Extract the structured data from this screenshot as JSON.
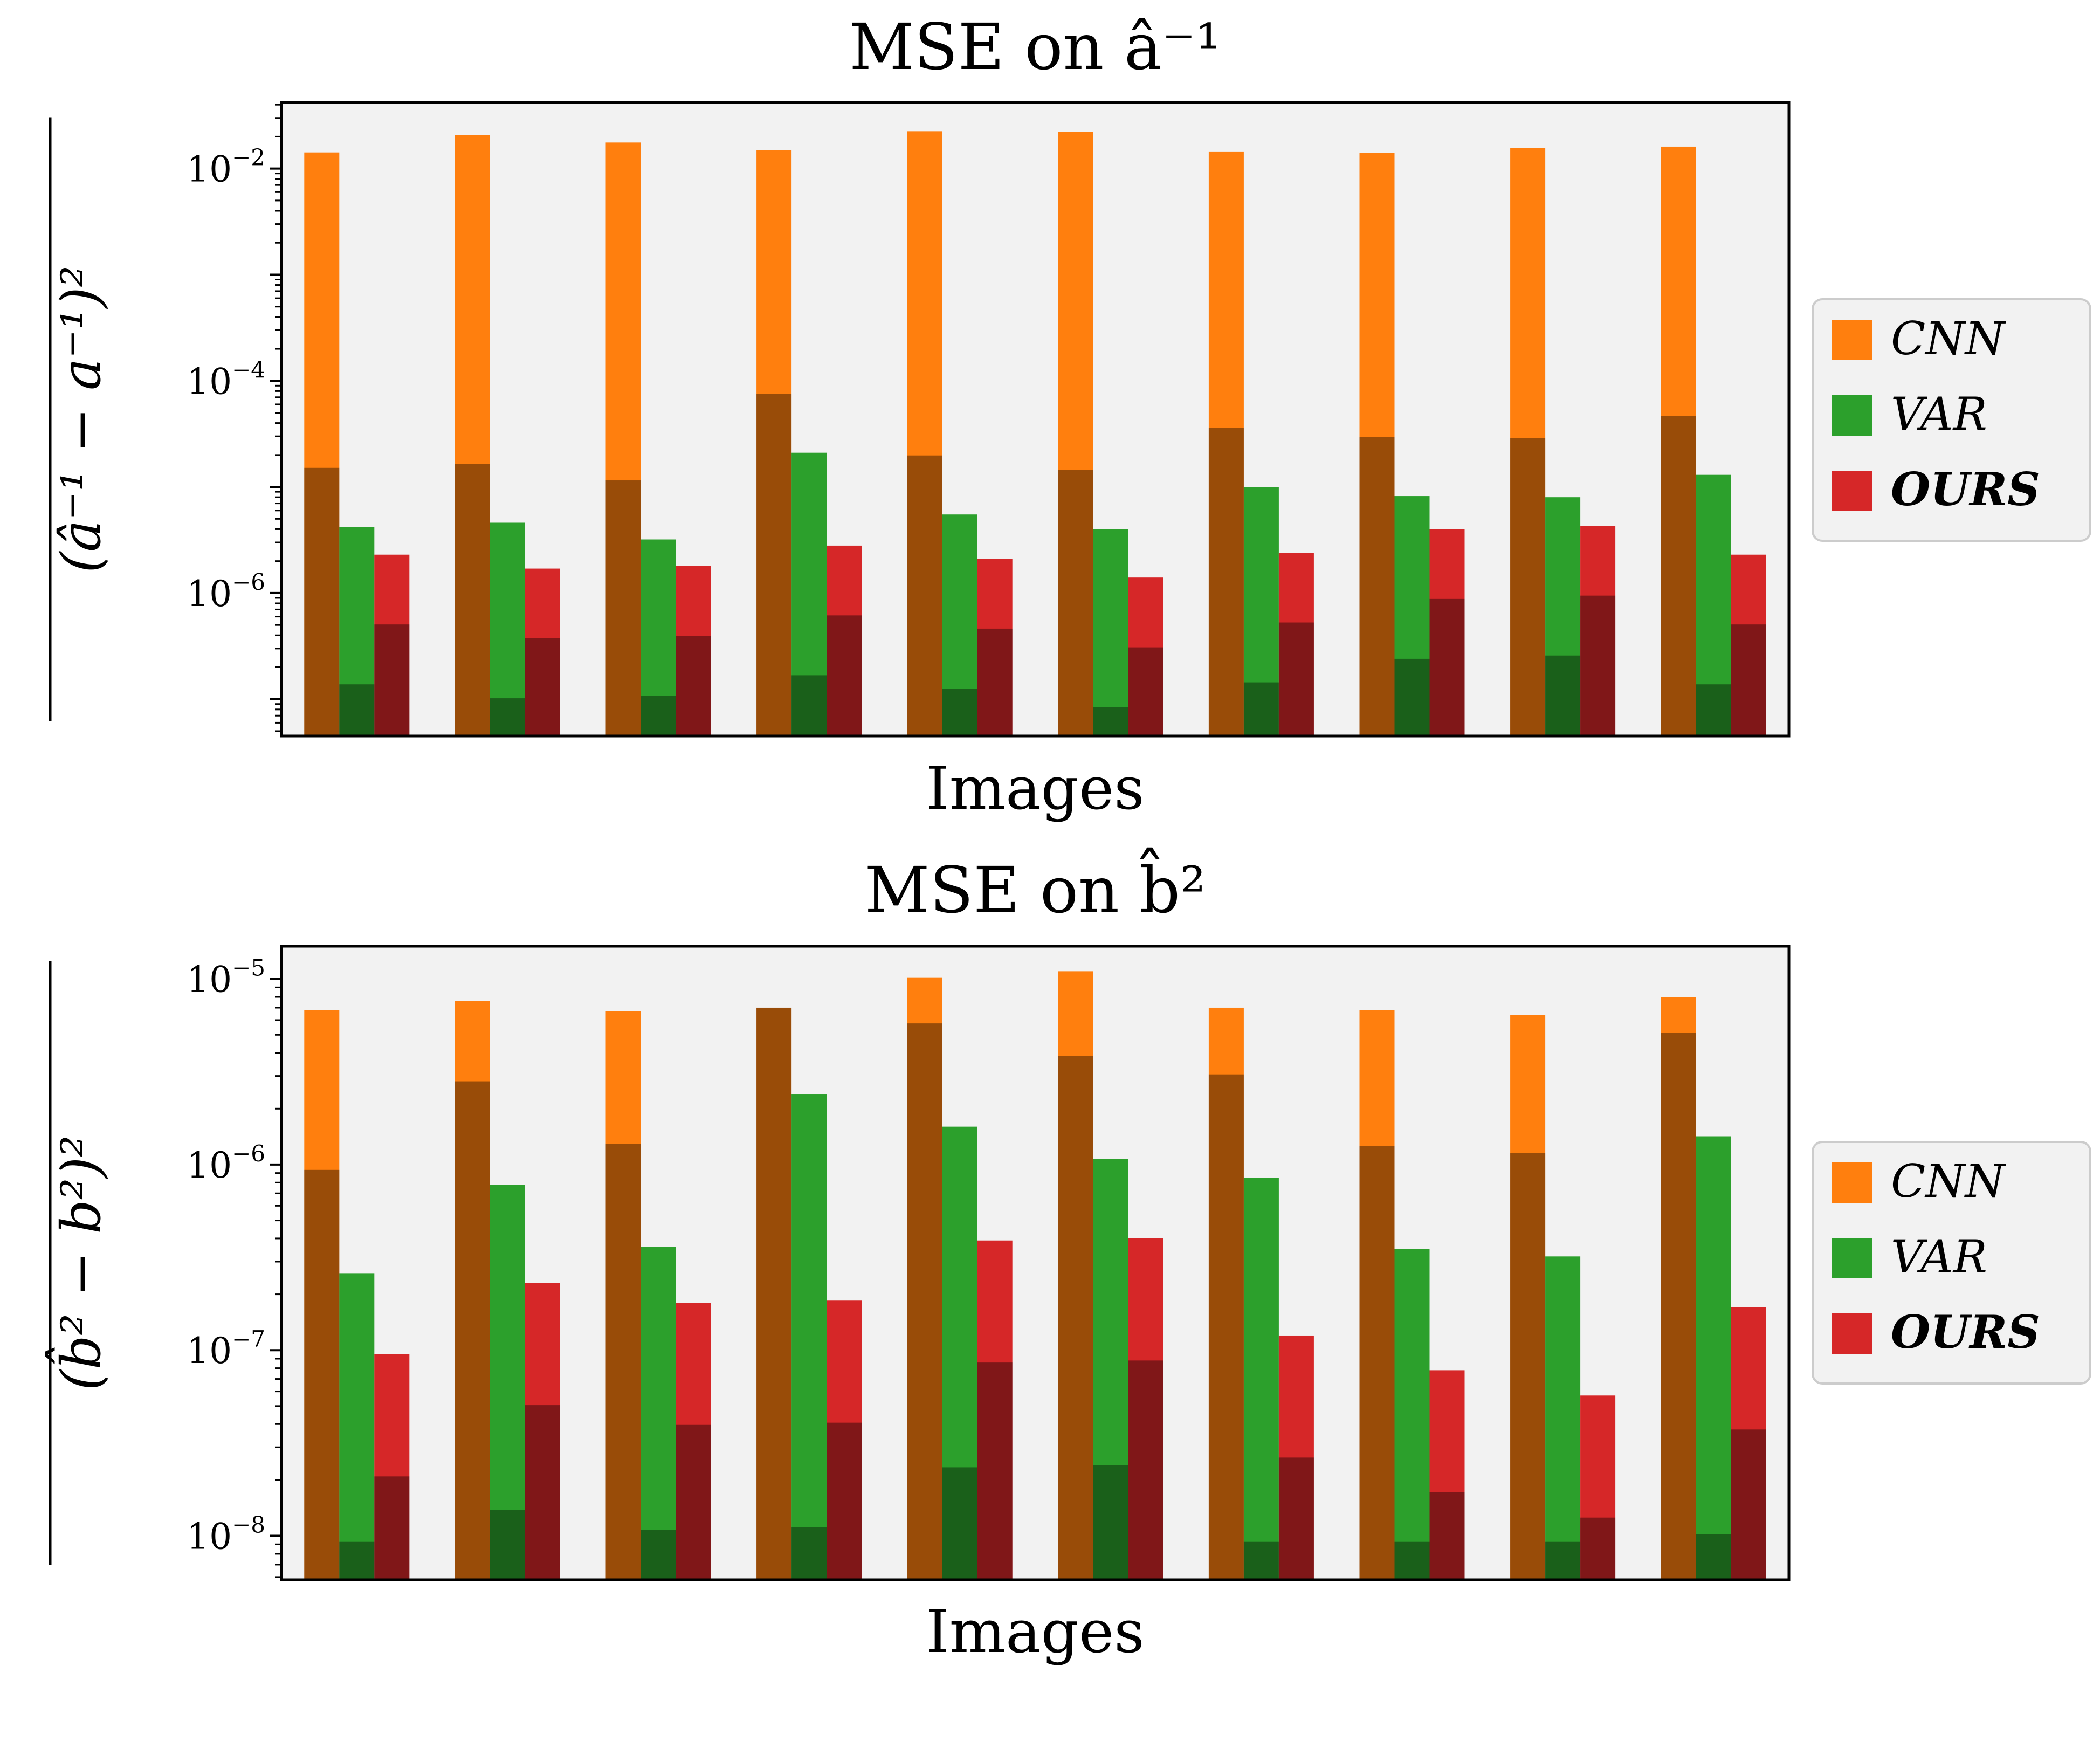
{
  "colors": {
    "cnn": "#ff7f0e",
    "var": "#2ca02c",
    "ours": "#d62728",
    "plot_bg": "#f2f2f2"
  },
  "chart_data": [
    {
      "type": "bar",
      "yscale": "log",
      "title": "MSE on â⁻¹",
      "xlabel": "Images",
      "ylabel": "(â⁻¹ − a⁻¹)²",
      "ylim": [
        4.5e-08,
        0.042
      ],
      "yticks": [
        {
          "value": 0.01,
          "base": "10",
          "exp": "−2"
        },
        {
          "value": 0.0001,
          "base": "10",
          "exp": "−4"
        },
        {
          "value": 1e-06,
          "base": "10",
          "exp": "−6"
        }
      ],
      "legend_position": "right",
      "series": [
        {
          "name": "CNN",
          "color_key": "cnn",
          "values": [
            0.0142,
            0.0208,
            0.0176,
            0.015,
            0.0225,
            0.0222,
            0.0145,
            0.0141,
            0.0157,
            0.0161
          ]
        },
        {
          "name": "VAR",
          "color_key": "var",
          "values": [
            4.2e-06,
            4.6e-06,
            3.2e-06,
            2.1e-05,
            5.5e-06,
            4e-06,
            1e-05,
            8.2e-06,
            8e-06,
            1.3e-05
          ]
        },
        {
          "name": "OURS",
          "color_key": "ours",
          "bold": true,
          "values": [
            2.3e-06,
            1.7e-06,
            1.8e-06,
            2.8e-06,
            2.1e-06,
            1.4e-06,
            2.4e-06,
            4e-06,
            4.3e-06,
            2.3e-06
          ]
        }
      ]
    },
    {
      "type": "bar",
      "yscale": "log",
      "title": "MSE on b̂²",
      "xlabel": "Images",
      "ylabel": "(b̂² − b²)²",
      "ylim": [
        5.8e-09,
        1.5e-05
      ],
      "yticks": [
        {
          "value": 1e-05,
          "base": "10",
          "exp": "−5"
        },
        {
          "value": 1e-06,
          "base": "10",
          "exp": "−6"
        },
        {
          "value": 1e-07,
          "base": "10",
          "exp": "−7"
        },
        {
          "value": 1e-08,
          "base": "10",
          "exp": "−8"
        }
      ],
      "legend_position": "right",
      "series": [
        {
          "name": "CNN",
          "color_key": "cnn",
          "values": [
            6.8e-06,
            7.6e-06,
            6.7e-06,
            7e-06,
            1.02e-05,
            1.1e-05,
            7e-06,
            6.8e-06,
            6.4e-06,
            8e-06
          ]
        },
        {
          "name": "VAR",
          "color_key": "var",
          "values": [
            2.6e-07,
            7.8e-07,
            3.6e-07,
            2.4e-06,
            1.6e-06,
            1.07e-06,
            8.5e-07,
            3.5e-07,
            3.2e-07,
            1.42e-06
          ]
        },
        {
          "name": "OURS",
          "color_key": "ours",
          "bold": true,
          "values": [
            9.5e-08,
            2.3e-07,
            1.8e-07,
            1.85e-07,
            3.9e-07,
            4e-07,
            1.2e-07,
            7.8e-08,
            5.7e-08,
            1.7e-07
          ]
        }
      ]
    }
  ]
}
